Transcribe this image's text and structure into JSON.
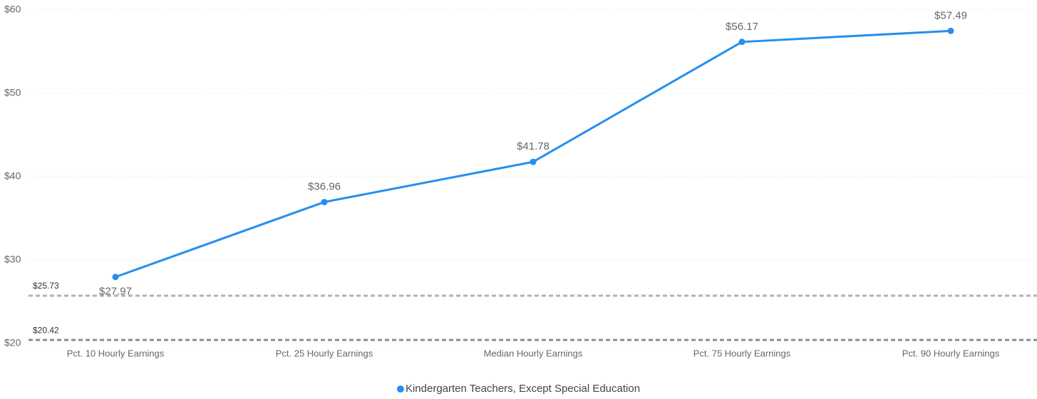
{
  "chart_data": {
    "type": "line",
    "categories": [
      "Pct. 10 Hourly Earnings",
      "Pct. 25 Hourly Earnings",
      "Median Hourly Earnings",
      "Pct. 75 Hourly Earnings",
      "Pct. 90 Hourly Earnings"
    ],
    "series": [
      {
        "name": "Kindergarten Teachers, Except Special Education",
        "color": "#2490ee",
        "values": [
          27.97,
          36.96,
          41.78,
          56.17,
          57.49
        ],
        "value_labels": [
          "$27.97",
          "$36.96",
          "$41.78",
          "$56.17",
          "$57.49"
        ]
      }
    ],
    "ylim": [
      20,
      60
    ],
    "yticks": [
      {
        "value": 20,
        "label": "$20"
      },
      {
        "value": 30,
        "label": "$30"
      },
      {
        "value": 40,
        "label": "$40"
      },
      {
        "value": 50,
        "label": "$50"
      },
      {
        "value": 60,
        "label": "$60"
      }
    ],
    "grid": true,
    "reference_lines": [
      {
        "value": 25.73,
        "label": "$25.73",
        "color": "#b3b3b3"
      },
      {
        "value": 20.42,
        "label": "$20.42",
        "color": "#7d9393"
      }
    ],
    "legend": "bottom"
  }
}
